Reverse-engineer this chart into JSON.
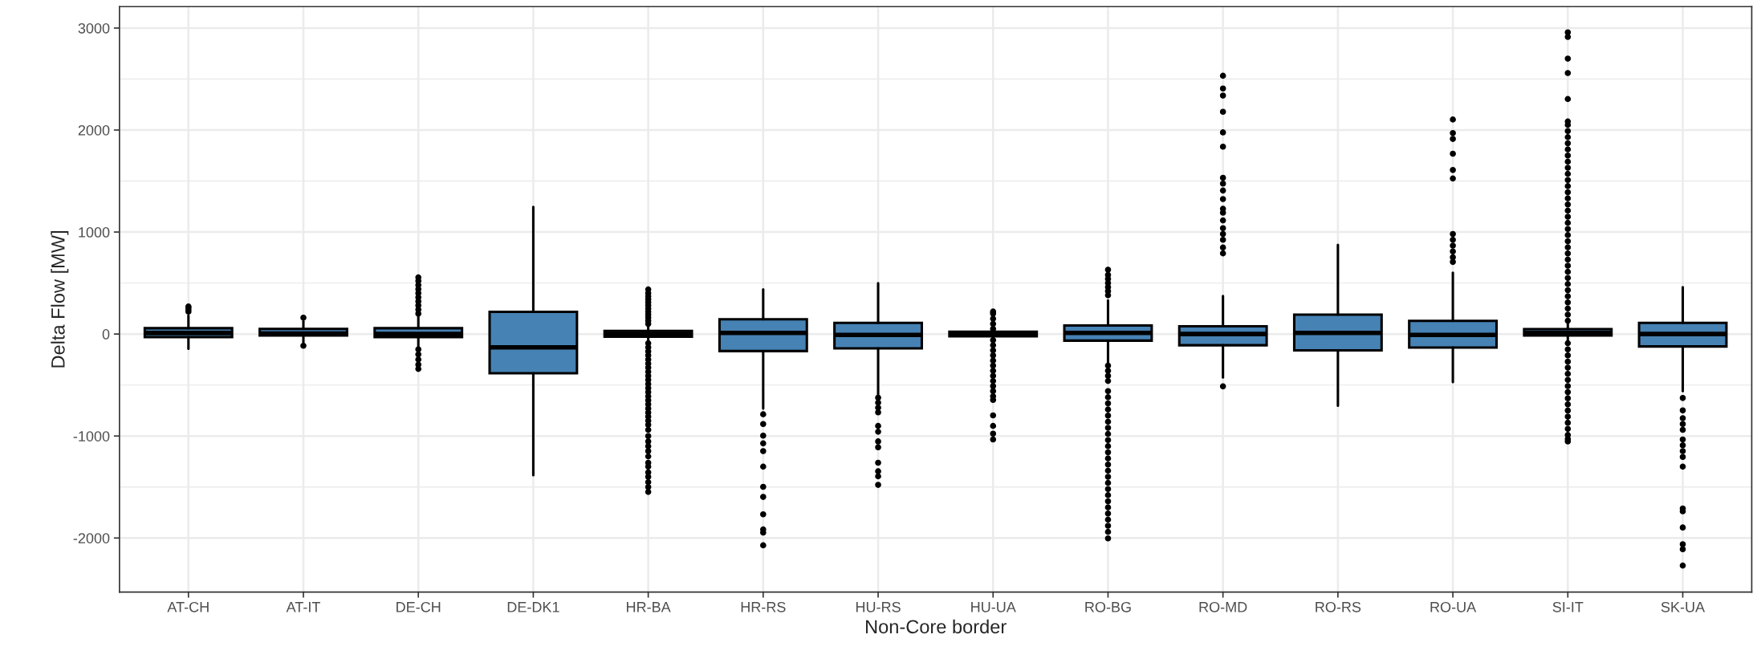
{
  "chart_data": {
    "type": "box",
    "xlabel": "Non-Core border",
    "ylabel": "Delta Flow [MW]",
    "categories": [
      "AT-CH",
      "AT-IT",
      "DE-CH",
      "DE-DK1",
      "HR-BA",
      "HR-RS",
      "HU-RS",
      "HU-UA",
      "RO-BG",
      "RO-MD",
      "RO-RS",
      "RO-UA",
      "SI-IT",
      "SK-UA"
    ],
    "color": "#4682b4",
    "boxes": [
      {
        "low": -145,
        "q1": -30,
        "median": 10,
        "q3": 57,
        "high": 180,
        "outliers": [
          220,
          240,
          260,
          270
        ]
      },
      {
        "low": -84,
        "q1": -15,
        "median": 4,
        "q3": 50,
        "high": 125,
        "outliers": [
          160,
          -115
        ]
      },
      {
        "low": -130,
        "q1": -30,
        "median": 0,
        "q3": 57,
        "high": 170,
        "outliers": [
          200,
          240,
          280,
          320,
          360,
          400,
          440,
          480,
          520,
          555,
          -150,
          -200,
          -250,
          -300,
          -342
        ]
      },
      {
        "low": -1384,
        "q1": -384,
        "median": -130,
        "q3": 217,
        "high": 1247
      },
      {
        "low": -80,
        "q1": -27,
        "median": 0,
        "q3": 30,
        "high": 90,
        "outliers": [
          100,
          130,
          160,
          190,
          220,
          250,
          280,
          310,
          340,
          370,
          400,
          437,
          -90,
          -130,
          -170,
          -210,
          -250,
          -290,
          -330,
          -370,
          -410,
          -450,
          -490,
          -530,
          -570,
          -610,
          -650,
          -690,
          -730,
          -770,
          -810,
          -850,
          -890,
          -939,
          -1000,
          -1053,
          -1100,
          -1148,
          -1200,
          -1262,
          -1300,
          -1357,
          -1400,
          -1452,
          -1500,
          -1548
        ]
      },
      {
        "low": -730,
        "q1": -167,
        "median": 11,
        "q3": 144,
        "high": 437,
        "outliers": [
          -787,
          -882,
          -996,
          -1072,
          -1148,
          -1300,
          -1498,
          -1597,
          -1768,
          -1916,
          -1947,
          -2072
        ]
      },
      {
        "low": -589,
        "q1": -141,
        "median": -8,
        "q3": 110,
        "high": 498,
        "outliers": [
          -624,
          -673,
          -722,
          -768,
          -901,
          -958,
          -1053,
          -1110,
          -1262,
          -1346,
          -1395,
          -1479
        ]
      },
      {
        "low": -50,
        "q1": -23,
        "median": 0,
        "q3": 23,
        "high": 40,
        "outliers": [
          50,
          100,
          150,
          200,
          220,
          -60,
          -110,
          -160,
          -210,
          -260,
          -310,
          -360,
          -410,
          -460,
          -510,
          -560,
          -610,
          -646,
          -798,
          -901,
          -977,
          -1034
        ]
      },
      {
        "low": -290,
        "q1": -65,
        "median": 11,
        "q3": 84,
        "high": 330,
        "outliers": [
          380,
          420,
          460,
          500,
          540,
          580,
          631,
          -310,
          -360,
          -410,
          -460,
          -560,
          -620,
          -680,
          -740,
          -800,
          -860,
          -920,
          -980,
          -1040,
          -1100,
          -1160,
          -1220,
          -1280,
          -1340,
          -1400,
          -1460,
          -1520,
          -1580,
          -1640,
          -1700,
          -1760,
          -1820,
          -1880,
          -1940,
          -2004
        ]
      },
      {
        "low": -426,
        "q1": -110,
        "median": 0,
        "q3": 76,
        "high": 373,
        "outliers": [
          -513,
          791,
          848,
          924,
          981,
          1038,
          1114,
          1190,
          1228,
          1323,
          1407,
          1475,
          1532,
          1837,
          1977,
          2179,
          2338,
          2407,
          2532
        ]
      },
      {
        "low": -703,
        "q1": -160,
        "median": 11,
        "q3": 190,
        "high": 875
      },
      {
        "low": -471,
        "q1": -133,
        "median": -8,
        "q3": 129,
        "high": 601,
        "outliers": [
          707,
          753,
          810,
          867,
          924,
          981,
          1525,
          1608,
          1768,
          1913,
          1970,
          2103
        ]
      },
      {
        "low": -65,
        "q1": -15,
        "median": 11,
        "q3": 49,
        "high": 106,
        "outliers": [
          130,
          190,
          250,
          310,
          370,
          430,
          490,
          550,
          610,
          670,
          730,
          790,
          850,
          910,
          970,
          1030,
          1090,
          1150,
          1210,
          1270,
          1330,
          1390,
          1450,
          1510,
          1570,
          1630,
          1690,
          1750,
          1810,
          1870,
          1930,
          1990,
          2050,
          2084,
          2304,
          2559,
          2700,
          2913,
          2958,
          -90,
          -150,
          -210,
          -270,
          -330,
          -390,
          -450,
          -510,
          -570,
          -630,
          -690,
          -750,
          -810,
          -870,
          -930,
          -990,
          -1030,
          -1053
        ]
      },
      {
        "low": -559,
        "q1": -122,
        "median": 0,
        "q3": 110,
        "high": 460,
        "outliers": [
          -627,
          -749,
          -825,
          -882,
          -939,
          -1034,
          -1091,
          -1148,
          -1205,
          -1300,
          -1711,
          -1738,
          -1897,
          -2061,
          -2110,
          -2270
        ]
      }
    ],
    "ylim": [
      -2530,
      3210
    ],
    "yticks": [
      -2000,
      -1000,
      0,
      1000,
      2000,
      3000
    ],
    "grid": true,
    "legend": false
  }
}
